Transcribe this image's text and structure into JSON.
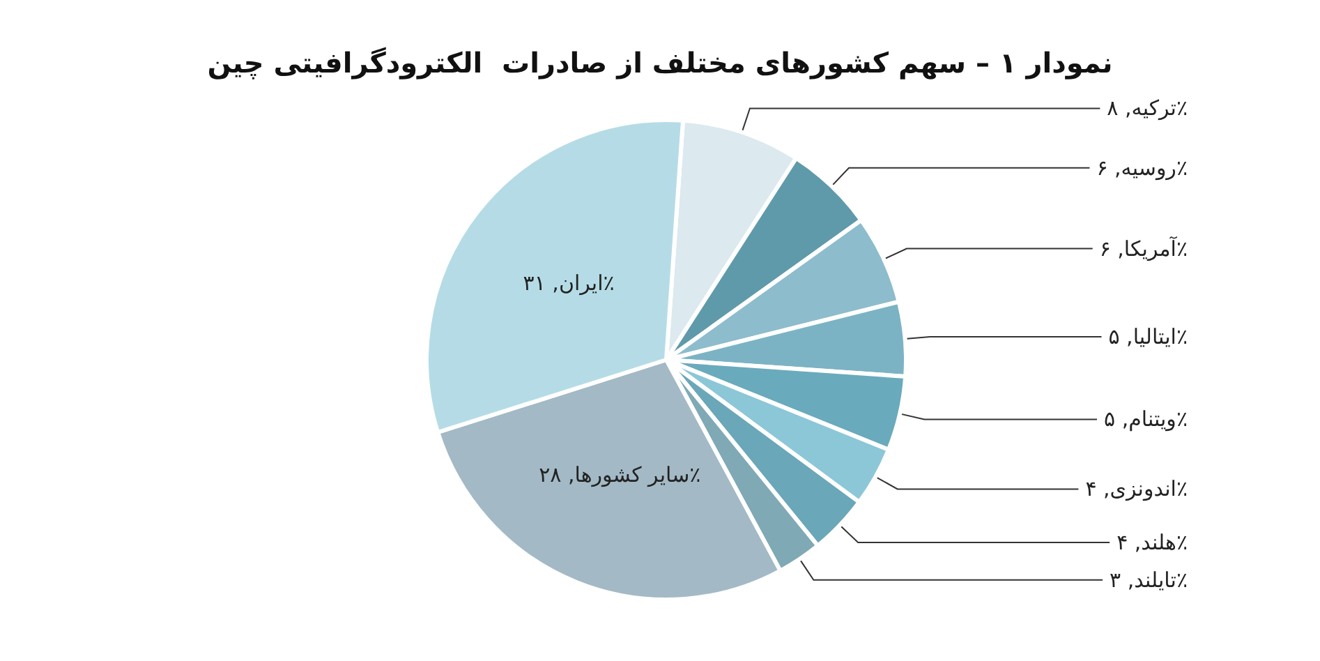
{
  "chart_data": {
    "type": "pie",
    "title": "نمودار ۱ – سهم کشورهای مختلف از صادرات  الکترودگرافیتی چین",
    "categories": [
      "ترکیه",
      "روسیه",
      "آمریکا",
      "ایتالیا",
      "ویتنام",
      "اندونزی",
      "هلند",
      "تایلند",
      "سایر کشورها",
      "ایران"
    ],
    "values": [
      8,
      6,
      6,
      5,
      5,
      4,
      4,
      3,
      28,
      31
    ],
    "value_labels": [
      "۸٪",
      "۶٪",
      "۶٪",
      "۵٪",
      "۵٪",
      "۴٪",
      "۴٪",
      "۳٪",
      "۲۸٪",
      "۳۱٪"
    ],
    "colors": [
      "#dce9ef",
      "#5f9aaa",
      "#8dbccc",
      "#7bb3c4",
      "#6aaabd",
      "#8cc7d8",
      "#6aa7b8",
      "#7fa9b5",
      "#a3b9c6",
      "#b5dce6"
    ],
    "legend": false
  }
}
